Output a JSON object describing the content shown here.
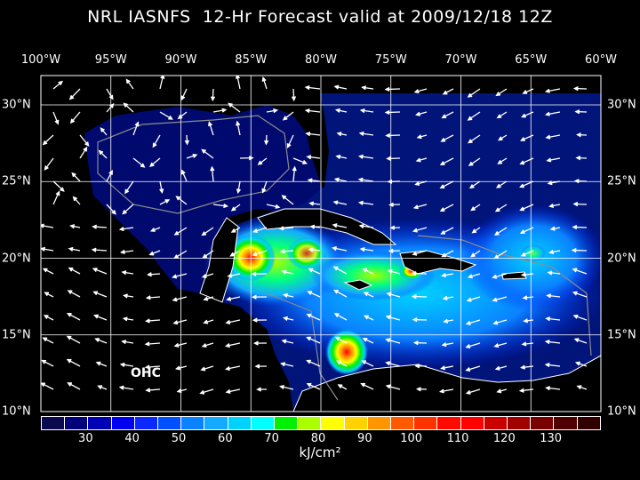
{
  "title": "NRL IASNFS  12-Hr Forecast valid at 2009/12/18 12Z",
  "lon_labels": [
    "100°W",
    "95°W",
    "90°W",
    "85°W",
    "80°W",
    "75°W",
    "70°W",
    "65°W",
    "60°W"
  ],
  "lat_labels": [
    "30°N",
    "25°N",
    "20°N",
    "15°N",
    "10°N"
  ],
  "field_label": "OHC",
  "colorbar": {
    "units": "kJ/cm²",
    "ticks": [
      "30",
      "40",
      "50",
      "60",
      "70",
      "80",
      "90",
      "100",
      "110",
      "120",
      "130"
    ],
    "colors": [
      "#0a0a50",
      "#00007a",
      "#0000b4",
      "#0000f0",
      "#0a28ff",
      "#0050ff",
      "#0a82ff",
      "#14aaff",
      "#00d2ff",
      "#00ffff",
      "#00f000",
      "#aaff00",
      "#ffff00",
      "#ffd200",
      "#ff9600",
      "#ff5a00",
      "#ff3200",
      "#ff0a00",
      "#ff0000",
      "#c80000",
      "#a00000",
      "#780000",
      "#500000",
      "#300000"
    ]
  },
  "colors": {
    "ocean_base": "#000a6e",
    "land": "#000000",
    "grid": "#ffffff",
    "contour": "#8c8c8c"
  }
}
